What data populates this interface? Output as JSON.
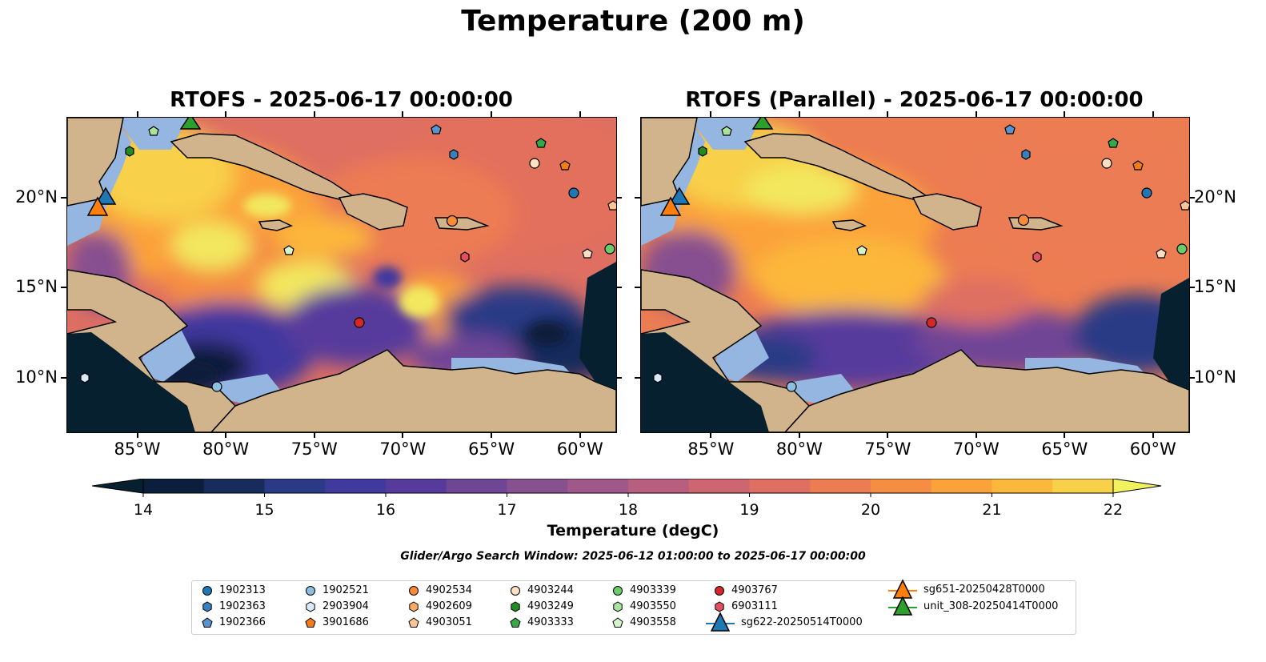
{
  "title": "Temperature (200 m)",
  "panels": [
    {
      "title": "RTOFS - 2025-06-17 00:00:00"
    },
    {
      "title": "RTOFS (Parallel) - 2025-06-17 00:00:00"
    }
  ],
  "axes": {
    "lon_ticks": [
      "85°W",
      "80°W",
      "75°W",
      "70°W",
      "65°W",
      "60°W"
    ],
    "lon_values": [
      -85,
      -80,
      -75,
      -70,
      -65,
      -60
    ],
    "lat_ticks": [
      "20°N",
      "15°N",
      "10°N"
    ],
    "lat_values": [
      20,
      15,
      10
    ],
    "lon_range": [
      -89,
      -58
    ],
    "lat_range": [
      7,
      24.5
    ]
  },
  "colorbar": {
    "label": "Temperature (degC)",
    "ticks": [
      "14",
      "15",
      "16",
      "17",
      "18",
      "19",
      "20",
      "21",
      "22"
    ],
    "range": [
      14,
      22
    ],
    "extend": "both",
    "colors": [
      "#0b1e3b",
      "#182c5c",
      "#2b3a86",
      "#40399e",
      "#573b9c",
      "#6f4596",
      "#87508f",
      "#a0578a",
      "#b85e7e",
      "#cd6670",
      "#de6f62",
      "#ec7c52",
      "#f58e43",
      "#fba23a",
      "#fcb83a",
      "#f8d04a",
      "#f2e85e"
    ]
  },
  "search_window": "Glider/Argo Search Window: 2025-06-12 01:00:00 to 2025-06-17 00:00:00",
  "legend": {
    "entries": [
      {
        "label": "1902313",
        "marker": "circle",
        "color": "#1f77b4"
      },
      {
        "label": "1902363",
        "marker": "hexagon",
        "color": "#3a7fc0"
      },
      {
        "label": "1902366",
        "marker": "pentagon",
        "color": "#5a94d0"
      },
      {
        "label": "1902521",
        "marker": "circle",
        "color": "#8fbfe0"
      },
      {
        "label": "2903904",
        "marker": "hexagon",
        "color": "#d8eaf8"
      },
      {
        "label": "3901686",
        "marker": "pentagon",
        "color": "#f57c14"
      },
      {
        "label": "4902534",
        "marker": "circle",
        "color": "#fa8a35"
      },
      {
        "label": "4902609",
        "marker": "hexagon",
        "color": "#fbaa63"
      },
      {
        "label": "4903051",
        "marker": "pentagon",
        "color": "#fdc495"
      },
      {
        "label": "4903244",
        "marker": "circle",
        "color": "#fde0c2"
      },
      {
        "label": "4903249",
        "marker": "hexagon",
        "color": "#228b22"
      },
      {
        "label": "4903333",
        "marker": "pentagon",
        "color": "#35a84a"
      },
      {
        "label": "4903339",
        "marker": "circle",
        "color": "#6acc6a"
      },
      {
        "label": "4903550",
        "marker": "hexagon",
        "color": "#a8e4a0"
      },
      {
        "label": "4903558",
        "marker": "pentagon",
        "color": "#d4f4cc"
      },
      {
        "label": "4903767",
        "marker": "circle",
        "color": "#d62728"
      },
      {
        "label": "6903111",
        "marker": "hexagon",
        "color": "#e05060"
      },
      {
        "label": "sg622-20250514T0000",
        "marker": "triangle",
        "color": "#1f77b4"
      },
      {
        "label": "sg651-20250428T0000",
        "marker": "triangle",
        "color": "#ff7f0e"
      },
      {
        "label": "unit_308-20250414T0000",
        "marker": "triangle",
        "color": "#2ca02c"
      }
    ]
  },
  "colors": {
    "land": "#d2b48c",
    "shelf": "#94b6e0",
    "deep": "#06202f"
  }
}
